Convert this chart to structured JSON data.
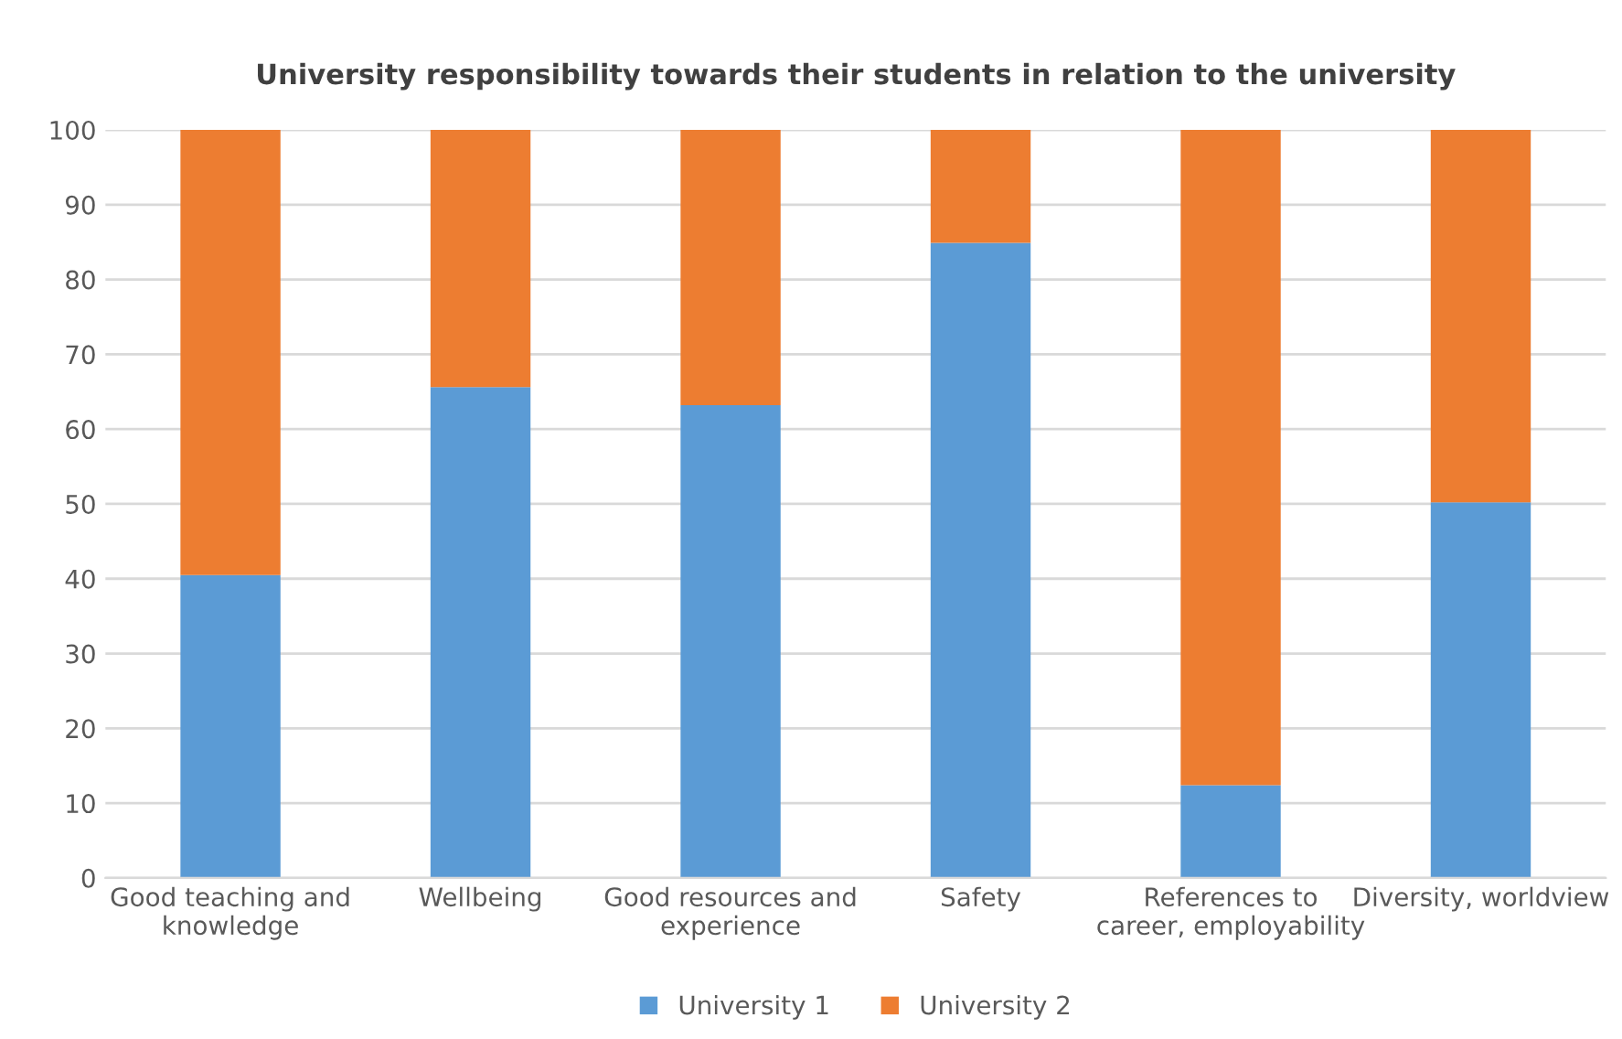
{
  "chart_data": {
    "type": "bar",
    "title": "University responsibility towards their students in relation to the university",
    "categories": [
      "Good teaching and\nknowledge",
      "Wellbeing",
      "Good resources and\nexperience",
      "Safety",
      "References to\ncareer, employability",
      "Diversity, worldview"
    ],
    "stacked": true,
    "series": [
      {
        "name": "University 1",
        "color": "#5b9bd5",
        "values": [
          40.5,
          65.6,
          63.2,
          84.9,
          12.4,
          50.2
        ]
      },
      {
        "name": "University 2",
        "color": "#ed7d31",
        "values": [
          59.5,
          34.4,
          36.8,
          15.1,
          87.6,
          49.8
        ]
      }
    ],
    "ylim": [
      0,
      100
    ],
    "yticks": [
      0,
      10,
      20,
      30,
      40,
      50,
      60,
      70,
      80,
      90,
      100
    ],
    "grid": "y",
    "legend": "bottom"
  }
}
